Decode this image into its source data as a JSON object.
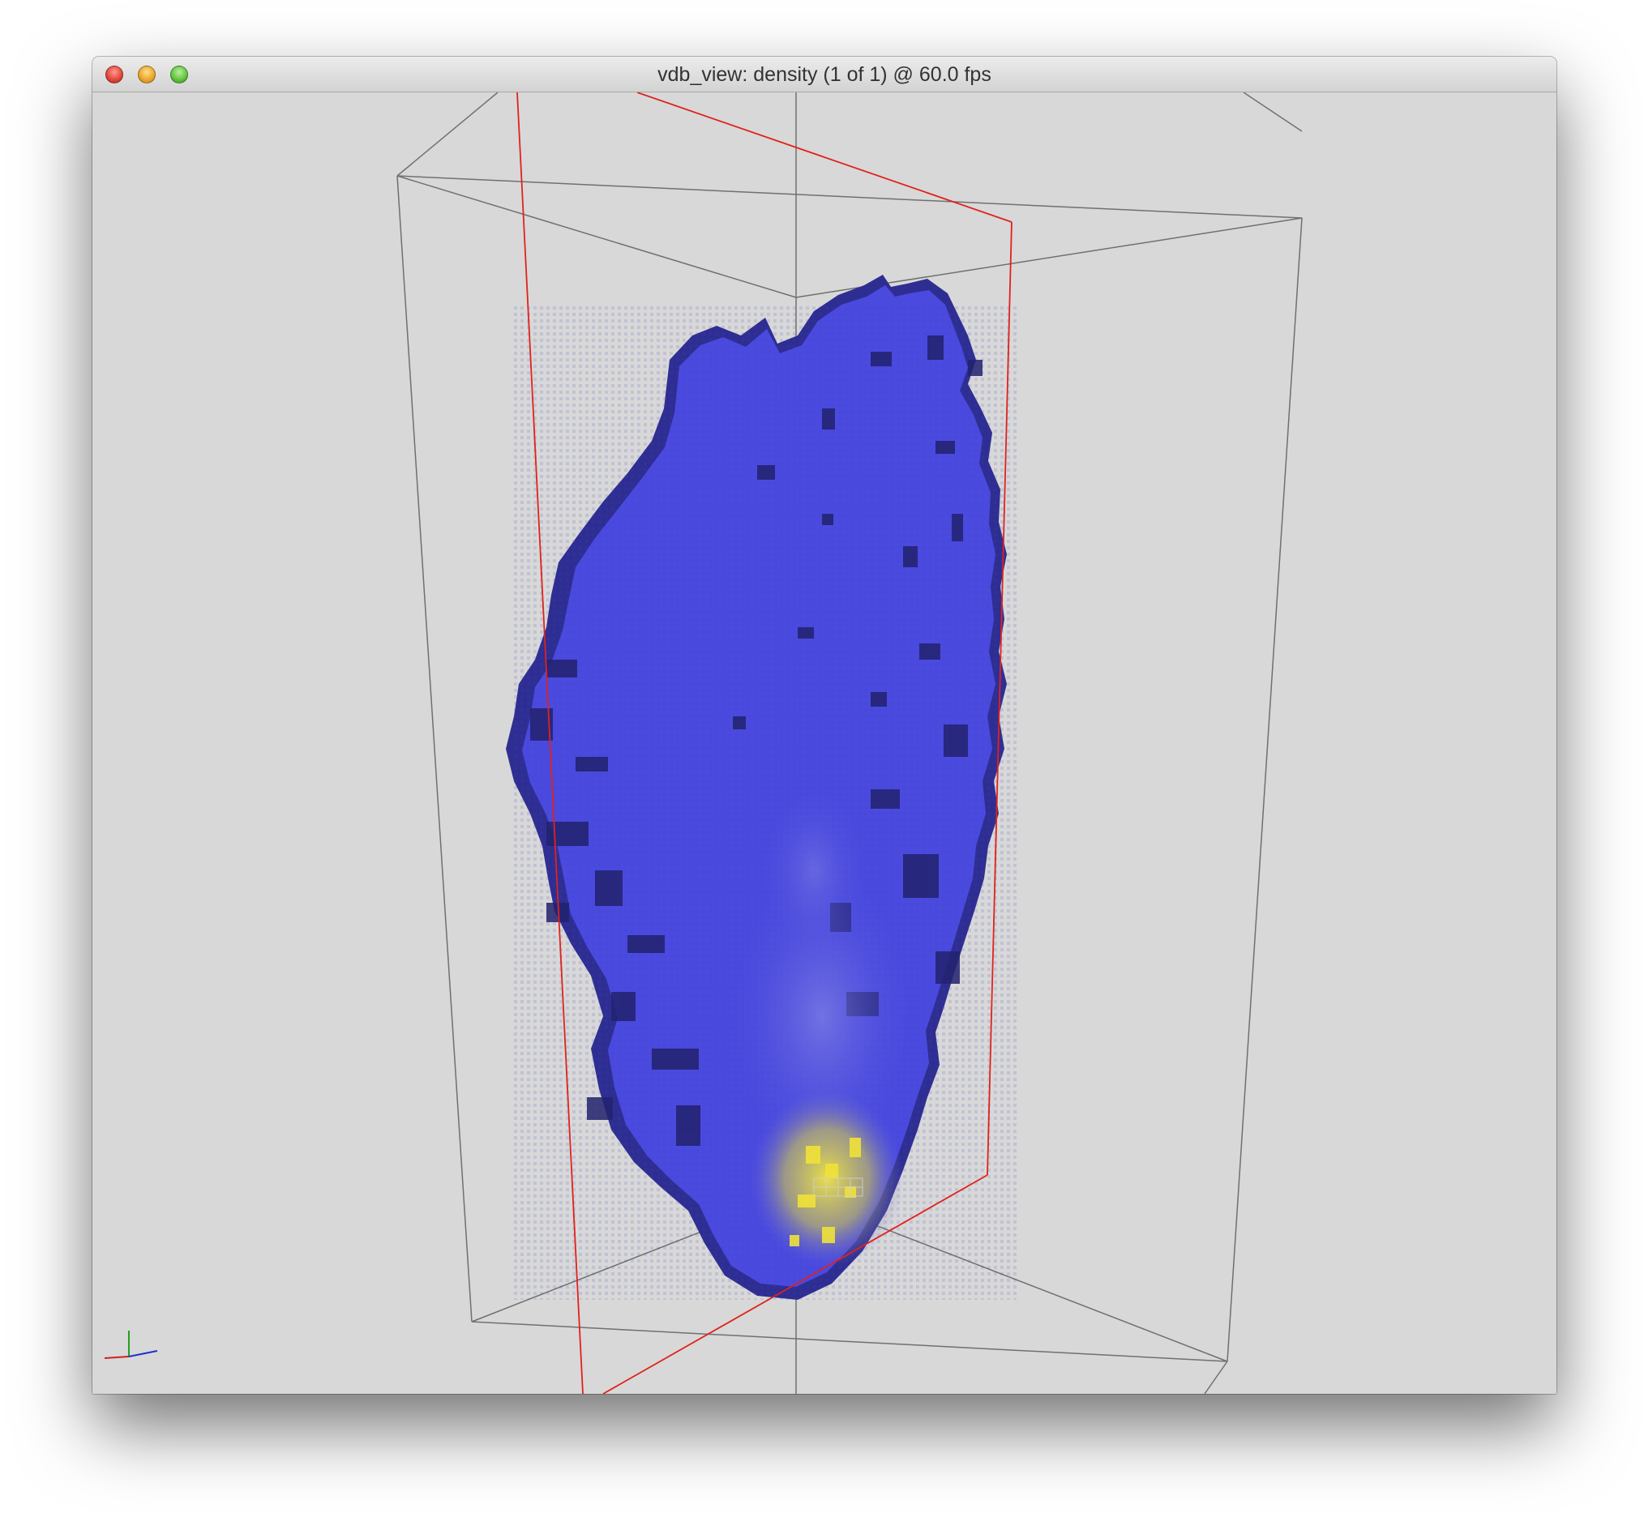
{
  "window": {
    "title": "vdb_view: density (1 of 1) @ 60.0 fps",
    "controls": [
      "close",
      "minimize",
      "zoom"
    ]
  },
  "viewport": {
    "grid_name": "density",
    "grid_index": "1 of 1",
    "fps": "60.0",
    "colors": {
      "background": "#d8d8d8",
      "bbox_outer": "#6e6e6e",
      "bbox_inner": "#e0221c",
      "volume_low": "#4848dc",
      "volume_shadow": "#25257a",
      "volume_high": "#e8dc40"
    },
    "axes_gizmo": {
      "x_color": "#d02020",
      "y_color": "#20a020",
      "z_color": "#2030d0"
    }
  }
}
